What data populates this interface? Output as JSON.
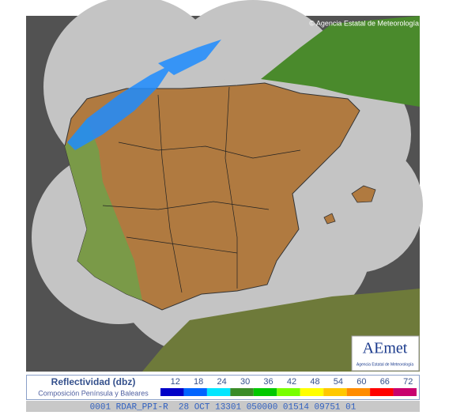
{
  "map": {
    "copyright": "© Agencia Estatal de Meteorología",
    "logo": {
      "name": "AEmet",
      "subtitle": "Agencia Estatal de Meteorología"
    }
  },
  "legend": {
    "title": "Reflectividad (dbz)",
    "subtitle": "Composición Península y Baleares",
    "scale": [
      {
        "value": 12,
        "color": "#0000c8"
      },
      {
        "value": 18,
        "color": "#0064ff"
      },
      {
        "value": 24,
        "color": "#00e6ff"
      },
      {
        "value": 30,
        "color": "#3a8c28"
      },
      {
        "value": 36,
        "color": "#00c800"
      },
      {
        "value": 42,
        "color": "#78ff00"
      },
      {
        "value": 48,
        "color": "#ffff00"
      },
      {
        "value": 54,
        "color": "#ffc800"
      },
      {
        "value": 60,
        "color": "#ff8c00"
      },
      {
        "value": 66,
        "color": "#ff0000"
      },
      {
        "value": 72,
        "color": "#c8006e"
      }
    ]
  },
  "footer": "0001 RDAR_PPI-R  28 OCT 13301 050000 01514 09751 01"
}
